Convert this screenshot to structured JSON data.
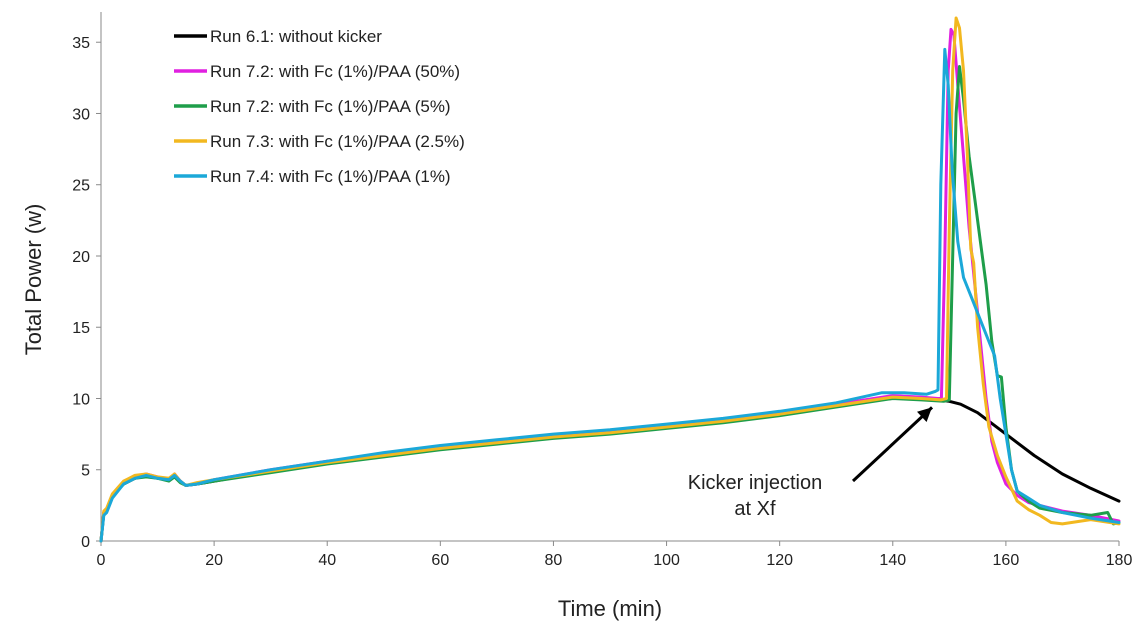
{
  "chart_data": {
    "type": "line",
    "xlabel": "Time (min)",
    "ylabel": "Total Power (w)",
    "xlim": [
      0,
      180
    ],
    "ylim": [
      0,
      37
    ],
    "x_ticks": [
      0,
      20,
      40,
      60,
      80,
      100,
      120,
      140,
      160,
      180
    ],
    "y_ticks": [
      0,
      5,
      10,
      15,
      20,
      25,
      30,
      35
    ],
    "grid": false,
    "legend_position": "top-left",
    "annotation": {
      "lines": [
        "Kicker injection",
        "at Xf"
      ],
      "target": [
        148,
        9.8
      ],
      "text_anchor": [
        132,
        5.2
      ]
    },
    "series": [
      {
        "name": "Run 6.1: without kicker",
        "color": "#000000",
        "points": [
          [
            0,
            0
          ],
          [
            0.5,
            2.0
          ],
          [
            1,
            2.2
          ],
          [
            2,
            3.2
          ],
          [
            4,
            4.0
          ],
          [
            6,
            4.4
          ],
          [
            8,
            4.6
          ],
          [
            10,
            4.4
          ],
          [
            12,
            4.3
          ],
          [
            13,
            4.6
          ],
          [
            14,
            4.2
          ],
          [
            15,
            3.9
          ],
          [
            17,
            4.0
          ],
          [
            20,
            4.2
          ],
          [
            30,
            4.9
          ],
          [
            40,
            5.5
          ],
          [
            50,
            6.0
          ],
          [
            60,
            6.5
          ],
          [
            70,
            6.9
          ],
          [
            80,
            7.3
          ],
          [
            90,
            7.6
          ],
          [
            100,
            8.0
          ],
          [
            110,
            8.4
          ],
          [
            120,
            8.9
          ],
          [
            130,
            9.5
          ],
          [
            140,
            10.1
          ],
          [
            145,
            10.0
          ],
          [
            148,
            9.9
          ],
          [
            150,
            9.8
          ],
          [
            152,
            9.6
          ],
          [
            155,
            9.0
          ],
          [
            160,
            7.5
          ],
          [
            165,
            6.0
          ],
          [
            170,
            4.7
          ],
          [
            175,
            3.7
          ],
          [
            180,
            2.8
          ]
        ]
      },
      {
        "name": "Run 7.2: with Fc (1%)/PAA (50%)",
        "color": "#E020E0",
        "points": [
          [
            0,
            0
          ],
          [
            0.5,
            2.0
          ],
          [
            1,
            2.2
          ],
          [
            2,
            3.2
          ],
          [
            4,
            4.1
          ],
          [
            6,
            4.5
          ],
          [
            8,
            4.7
          ],
          [
            10,
            4.5
          ],
          [
            12,
            4.3
          ],
          [
            13,
            4.7
          ],
          [
            14,
            4.2
          ],
          [
            15,
            3.9
          ],
          [
            17,
            4.0
          ],
          [
            20,
            4.3
          ],
          [
            30,
            5.0
          ],
          [
            40,
            5.6
          ],
          [
            50,
            6.1
          ],
          [
            60,
            6.6
          ],
          [
            70,
            7.0
          ],
          [
            80,
            7.4
          ],
          [
            90,
            7.7
          ],
          [
            100,
            8.1
          ],
          [
            110,
            8.5
          ],
          [
            120,
            9.0
          ],
          [
            130,
            9.6
          ],
          [
            140,
            10.2
          ],
          [
            145,
            10.1
          ],
          [
            148,
            10.0
          ],
          [
            148.6,
            10.0
          ],
          [
            149.2,
            20
          ],
          [
            149.8,
            33
          ],
          [
            150.3,
            35.9
          ],
          [
            150.8,
            35.5
          ],
          [
            151.5,
            32
          ],
          [
            152.5,
            27
          ],
          [
            153.5,
            22
          ],
          [
            154.5,
            18
          ],
          [
            155.5,
            14
          ],
          [
            156.5,
            10
          ],
          [
            157.5,
            7
          ],
          [
            158.5,
            5.5
          ],
          [
            160,
            4.0
          ],
          [
            162,
            3.2
          ],
          [
            164,
            2.7
          ],
          [
            166,
            2.5
          ],
          [
            170,
            2.1
          ],
          [
            175,
            1.8
          ],
          [
            180,
            1.4
          ]
        ]
      },
      {
        "name": "Run 7.2: with Fc (1%)/PAA (5%)",
        "color": "#1E9E4A",
        "points": [
          [
            0,
            0
          ],
          [
            0.5,
            1.9
          ],
          [
            1,
            2.1
          ],
          [
            2,
            3.1
          ],
          [
            4,
            4.0
          ],
          [
            6,
            4.4
          ],
          [
            8,
            4.5
          ],
          [
            10,
            4.4
          ],
          [
            12,
            4.2
          ],
          [
            13,
            4.5
          ],
          [
            14,
            4.1
          ],
          [
            15,
            3.9
          ],
          [
            17,
            4.0
          ],
          [
            20,
            4.2
          ],
          [
            30,
            4.8
          ],
          [
            40,
            5.4
          ],
          [
            50,
            5.9
          ],
          [
            60,
            6.4
          ],
          [
            70,
            6.8
          ],
          [
            80,
            7.2
          ],
          [
            90,
            7.5
          ],
          [
            100,
            7.9
          ],
          [
            110,
            8.3
          ],
          [
            120,
            8.8
          ],
          [
            130,
            9.4
          ],
          [
            140,
            10.0
          ],
          [
            145,
            9.9
          ],
          [
            149,
            9.8
          ],
          [
            150,
            9.9
          ],
          [
            150.6,
            20
          ],
          [
            151.2,
            30
          ],
          [
            151.8,
            33.3
          ],
          [
            152.5,
            31
          ],
          [
            153.5,
            27
          ],
          [
            154.5,
            24
          ],
          [
            155.5,
            21
          ],
          [
            156.5,
            18
          ],
          [
            157.5,
            14
          ],
          [
            158.5,
            11.6
          ],
          [
            159.2,
            11.5
          ],
          [
            160,
            8
          ],
          [
            161,
            5
          ],
          [
            162,
            3.5
          ],
          [
            164,
            2.8
          ],
          [
            166,
            2.3
          ],
          [
            170,
            2.0
          ],
          [
            175,
            1.8
          ],
          [
            178,
            2.0
          ],
          [
            179,
            1.2
          ],
          [
            180,
            1.3
          ]
        ]
      },
      {
        "name": "Run 7.3: with Fc (1%)/PAA (2.5%)",
        "color": "#F2B820",
        "points": [
          [
            0,
            0
          ],
          [
            0.5,
            2.1
          ],
          [
            1,
            2.3
          ],
          [
            2,
            3.3
          ],
          [
            4,
            4.2
          ],
          [
            6,
            4.6
          ],
          [
            8,
            4.7
          ],
          [
            10,
            4.5
          ],
          [
            12,
            4.4
          ],
          [
            13,
            4.7
          ],
          [
            14,
            4.2
          ],
          [
            15,
            3.9
          ],
          [
            17,
            4.1
          ],
          [
            20,
            4.3
          ],
          [
            30,
            4.9
          ],
          [
            40,
            5.5
          ],
          [
            50,
            6.0
          ],
          [
            60,
            6.5
          ],
          [
            70,
            6.9
          ],
          [
            80,
            7.3
          ],
          [
            90,
            7.6
          ],
          [
            100,
            8.0
          ],
          [
            110,
            8.4
          ],
          [
            120,
            8.9
          ],
          [
            130,
            9.5
          ],
          [
            140,
            10.1
          ],
          [
            145,
            10.0
          ],
          [
            148.5,
            9.9
          ],
          [
            149.5,
            10.0
          ],
          [
            150,
            22
          ],
          [
            150.6,
            33
          ],
          [
            151.2,
            36.7
          ],
          [
            151.8,
            36.0
          ],
          [
            152.5,
            33
          ],
          [
            153.2,
            27
          ],
          [
            153.8,
            20.5
          ],
          [
            154.3,
            19.5
          ],
          [
            155,
            15
          ],
          [
            156,
            11
          ],
          [
            157,
            8
          ],
          [
            158.5,
            6
          ],
          [
            160,
            4.5
          ],
          [
            162,
            2.8
          ],
          [
            164,
            2.2
          ],
          [
            166,
            1.8
          ],
          [
            168,
            1.3
          ],
          [
            170,
            1.2
          ],
          [
            175,
            1.5
          ],
          [
            180,
            1.2
          ]
        ]
      },
      {
        "name": "Run 7.4: with Fc (1%)/PAA (1%)",
        "color": "#1BA8D8",
        "points": [
          [
            0,
            0
          ],
          [
            0.5,
            1.8
          ],
          [
            1,
            2.0
          ],
          [
            2,
            3.0
          ],
          [
            4,
            4.0
          ],
          [
            6,
            4.4
          ],
          [
            8,
            4.6
          ],
          [
            10,
            4.4
          ],
          [
            12,
            4.3
          ],
          [
            13,
            4.6
          ],
          [
            14,
            4.2
          ],
          [
            15,
            3.9
          ],
          [
            17,
            4.0
          ],
          [
            20,
            4.3
          ],
          [
            30,
            5.0
          ],
          [
            40,
            5.6
          ],
          [
            50,
            6.2
          ],
          [
            60,
            6.7
          ],
          [
            70,
            7.1
          ],
          [
            80,
            7.5
          ],
          [
            90,
            7.8
          ],
          [
            100,
            8.2
          ],
          [
            110,
            8.6
          ],
          [
            120,
            9.1
          ],
          [
            130,
            9.7
          ],
          [
            138,
            10.4
          ],
          [
            142,
            10.4
          ],
          [
            146,
            10.3
          ],
          [
            147.5,
            10.5
          ],
          [
            148,
            10.6
          ],
          [
            148.5,
            25
          ],
          [
            149.2,
            34.5
          ],
          [
            149.8,
            32
          ],
          [
            150.5,
            26
          ],
          [
            151.5,
            21
          ],
          [
            152.5,
            18.5
          ],
          [
            154,
            17
          ],
          [
            155.5,
            15.5
          ],
          [
            157,
            14
          ],
          [
            158,
            13
          ],
          [
            159,
            10
          ],
          [
            160,
            7.5
          ],
          [
            161,
            5
          ],
          [
            162,
            3.5
          ],
          [
            164,
            3.0
          ],
          [
            166,
            2.5
          ],
          [
            170,
            2.0
          ],
          [
            175,
            1.6
          ],
          [
            180,
            1.3
          ]
        ]
      }
    ]
  }
}
